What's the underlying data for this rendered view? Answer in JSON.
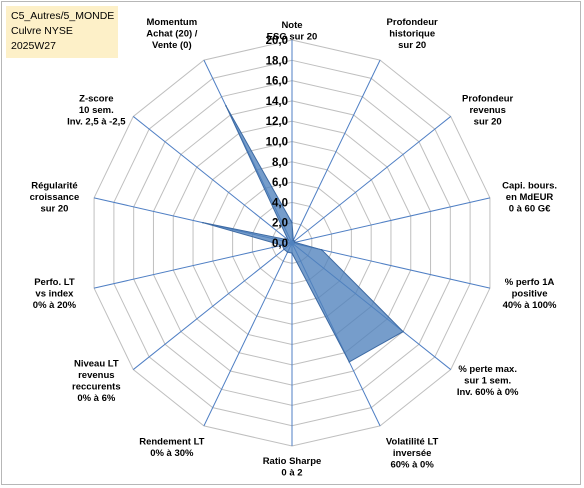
{
  "info_box": {
    "line1": "C5_Autres/5_MONDE",
    "line2": "Culvre NYSE",
    "line3": "2025W27"
  },
  "chart_data": {
    "type": "radar",
    "title": "",
    "rmin": 0,
    "rmax": 20,
    "ticks": [
      "0,0",
      "2,0",
      "4,0",
      "6,0",
      "8,0",
      "10,0",
      "12,0",
      "14,0",
      "16,0",
      "18,0",
      "20,0"
    ],
    "grid": true,
    "axes": [
      {
        "lines": [
          "Note",
          "ESG sur 20"
        ]
      },
      {
        "lines": [
          "Profondeur",
          "historique",
          "sur 20"
        ]
      },
      {
        "lines": [
          "Profondeur",
          "revenus",
          "sur 20"
        ]
      },
      {
        "lines": [
          "Capi. bours.",
          "en MdEUR",
          "0 à 60 G€"
        ]
      },
      {
        "lines": [
          "% perfo 1A",
          "positive",
          "40% à 100%"
        ]
      },
      {
        "lines": [
          "% perte max.",
          "sur 1 sem.",
          "Inv. 60% à 0%"
        ]
      },
      {
        "lines": [
          "Volatilité LT",
          "inversée",
          "60% à 0%"
        ]
      },
      {
        "lines": [
          "Ratio Sharpe",
          "0 à 2"
        ]
      },
      {
        "lines": [
          "Rendement LT",
          "0% à 30%"
        ]
      },
      {
        "lines": [
          "Niveau LT",
          "revenus",
          "reccurents",
          "0% à 6%"
        ]
      },
      {
        "lines": [
          "Perfo. LT",
          "vs index",
          "0% à 20%"
        ]
      },
      {
        "lines": [
          "Régularité",
          "croissance",
          "sur 20"
        ]
      },
      {
        "lines": [
          "Z-score",
          "10 sem.",
          "Inv. 2,5 à -2,5"
        ]
      },
      {
        "lines": [
          "Momentum",
          "Achat (20) /",
          "Vente (0)"
        ]
      }
    ],
    "series": [
      {
        "values": [
          2.0,
          0.3,
          0.3,
          0.3,
          3.0,
          14.0,
          13.0,
          1.0,
          1.0,
          1.0,
          1.0,
          9.0,
          0.5,
          15.0
        ],
        "color": "#4f81bd"
      }
    ]
  }
}
